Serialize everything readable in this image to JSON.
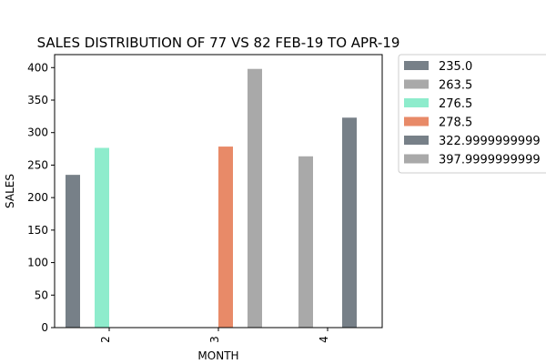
{
  "chart_data": {
    "type": "bar",
    "title": "SALES DISTRIBUTION OF 77 VS 82 FEB-19 TO APR-19",
    "xlabel": "MONTH",
    "ylabel": "SALES",
    "categories": [
      "2",
      "3",
      "4"
    ],
    "ylim": [
      0,
      420
    ],
    "yticks": [
      0,
      50,
      100,
      150,
      200,
      250,
      300,
      350,
      400
    ],
    "grid": false,
    "legend_position": "outside-right",
    "legend": [
      {
        "label": "235.0",
        "color": "#778088"
      },
      {
        "label": "263.5",
        "color": "#a9a9a9"
      },
      {
        "label": "276.5",
        "color": "#8eeccc"
      },
      {
        "label": "278.5",
        "color": "#e88a68"
      },
      {
        "label": "322.9999999999",
        "color": "#778088"
      },
      {
        "label": "397.9999999999",
        "color": "#a9a9a9"
      }
    ],
    "slots_per_category": 6,
    "bars": [
      {
        "category": "2",
        "slot": 0,
        "value": 235.0,
        "color": "#778088"
      },
      {
        "category": "2",
        "slot": 2,
        "value": 276.5,
        "color": "#8eeccc"
      },
      {
        "category": "3",
        "slot": 3,
        "value": 278.5,
        "color": "#e88a68"
      },
      {
        "category": "3",
        "slot": 5,
        "value": 398.0,
        "color": "#a9a9a9"
      },
      {
        "category": "4",
        "slot": 1,
        "value": 263.5,
        "color": "#a9a9a9"
      },
      {
        "category": "4",
        "slot": 4,
        "value": 323.0,
        "color": "#778088"
      }
    ]
  }
}
